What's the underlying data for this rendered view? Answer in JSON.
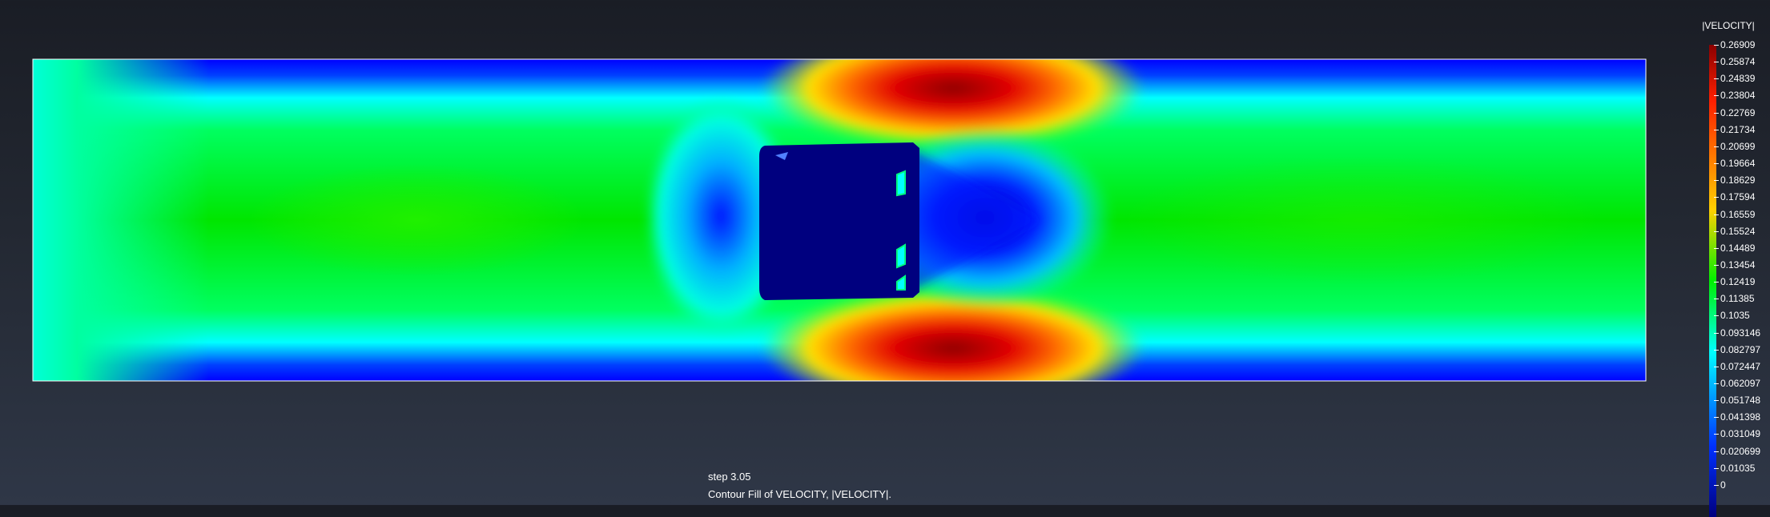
{
  "viewport": {
    "step_label": "step 3.05",
    "caption": "Contour Fill of VELOCITY, |VELOCITY|."
  },
  "legend": {
    "title": "|VELOCITY|",
    "values": [
      "0.26909",
      "0.25874",
      "0.24839",
      "0.23804",
      "0.22769",
      "0.21734",
      "0.20699",
      "0.19664",
      "0.18629",
      "0.17594",
      "0.16559",
      "0.15524",
      "0.14489",
      "0.13454",
      "0.12419",
      "0.11385",
      "0.1035",
      "0.093146",
      "0.082797",
      "0.072447",
      "0.062097",
      "0.051748",
      "0.041398",
      "0.031049",
      "0.020699",
      "0.01035",
      "0"
    ],
    "colors": {
      "max": "#8b0000",
      "high": "#ff2000",
      "mid_high": "#ffd000",
      "mid": "#00f000",
      "mid_low": "#00ffff",
      "low": "#0030ff",
      "min": "#00007f"
    }
  }
}
